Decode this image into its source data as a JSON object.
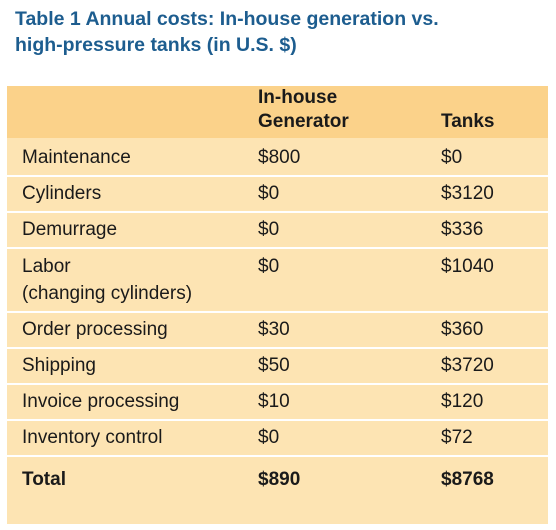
{
  "table": {
    "title_line1": "Table 1 Annual costs: In-house generation vs.",
    "title_line2": "high-pressure tanks (in U.S. $)",
    "headers": {
      "item": "",
      "generator_line1": "In-house",
      "generator_line2": "Generator",
      "tanks": "Tanks"
    },
    "rows": [
      {
        "item": "Maintenance",
        "item_line2": "",
        "generator": "$800",
        "tanks": "$0"
      },
      {
        "item": "Cylinders",
        "item_line2": "",
        "generator": "$0",
        "tanks": "$3120"
      },
      {
        "item": "Demurrage",
        "item_line2": "",
        "generator": "$0",
        "tanks": "$336"
      },
      {
        "item": "Labor",
        "item_line2": "(changing cylinders)",
        "generator": "$0",
        "tanks": "$1040"
      },
      {
        "item": "Order processing",
        "item_line2": "",
        "generator": "$30",
        "tanks": "$360"
      },
      {
        "item": "Shipping",
        "item_line2": "",
        "generator": "$50",
        "tanks": "$3720"
      },
      {
        "item": "Invoice processing",
        "item_line2": "",
        "generator": "$10",
        "tanks": "$120"
      },
      {
        "item": "Inventory control",
        "item_line2": "",
        "generator": "$0",
        "tanks": "$72"
      }
    ],
    "total": {
      "item": "Total",
      "generator": "$890",
      "tanks": "$8768"
    }
  },
  "colors": {
    "title": "#1d5d8f",
    "panel": "#fde4b3",
    "header_band": "#fbd28a",
    "rule": "#ffffff",
    "text": "#1a1a1a"
  }
}
